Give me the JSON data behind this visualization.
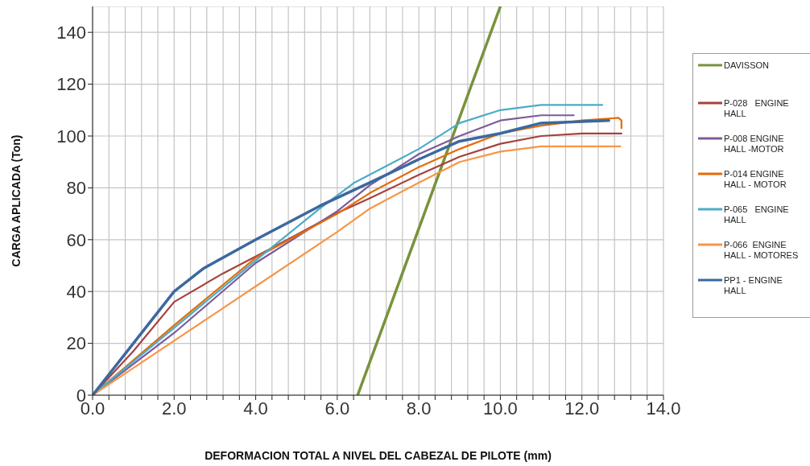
{
  "chart_data": {
    "type": "line",
    "xlabel": "DEFORMACION  TOTAL A NIVEL DEL CABEZAL DE PILOTE (mm)",
    "ylabel": "CARGA APLICADA   (Ton)",
    "xlim": [
      0,
      14
    ],
    "ylim": [
      0,
      150
    ],
    "xticks": [
      {
        "value": 0,
        "label": "0.0"
      },
      {
        "value": 0.4,
        "label": null
      },
      {
        "value": 0.8,
        "label": null
      },
      {
        "value": 1.2,
        "label": null
      },
      {
        "value": 1.6,
        "label": null
      },
      {
        "value": 2,
        "label": "2.0"
      },
      {
        "value": 2.4,
        "label": null
      },
      {
        "value": 2.8,
        "label": null
      },
      {
        "value": 3.2,
        "label": null
      },
      {
        "value": 3.6,
        "label": null
      },
      {
        "value": 4,
        "label": "4.0"
      },
      {
        "value": 4.4,
        "label": null
      },
      {
        "value": 4.8,
        "label": null
      },
      {
        "value": 5.2,
        "label": null
      },
      {
        "value": 5.6,
        "label": null
      },
      {
        "value": 6,
        "label": "6.0"
      },
      {
        "value": 6.4,
        "label": null
      },
      {
        "value": 6.8,
        "label": null
      },
      {
        "value": 7.2,
        "label": null
      },
      {
        "value": 7.6,
        "label": null
      },
      {
        "value": 8,
        "label": "8.0"
      },
      {
        "value": 8.4,
        "label": null
      },
      {
        "value": 8.8,
        "label": null
      },
      {
        "value": 9.2,
        "label": null
      },
      {
        "value": 9.6,
        "label": null
      },
      {
        "value": 10,
        "label": "10.0"
      },
      {
        "value": 10.4,
        "label": null
      },
      {
        "value": 10.8,
        "label": null
      },
      {
        "value": 11.2,
        "label": null
      },
      {
        "value": 11.6,
        "label": null
      },
      {
        "value": 12,
        "label": "12.0"
      },
      {
        "value": 12.4,
        "label": null
      },
      {
        "value": 12.8,
        "label": null
      },
      {
        "value": 13.2,
        "label": null
      },
      {
        "value": 13.6,
        "label": null
      },
      {
        "value": 14,
        "label": "14.0"
      }
    ],
    "yticks": [
      0,
      20,
      40,
      60,
      80,
      100,
      120,
      140
    ],
    "grid": true,
    "legend": "right",
    "marker": "none",
    "series": [
      {
        "name": "DAVISSON",
        "color": "#77933c",
        "x": [
          6.5,
          10
        ],
        "values": [
          0,
          150
        ]
      },
      {
        "name": "P-028   ENGINE HALL",
        "color": "#a5423f",
        "x": [
          0,
          1,
          2,
          3.2,
          4.3,
          5.96,
          6.8,
          8,
          9,
          10,
          11,
          12,
          12.97
        ],
        "values": [
          0,
          17,
          36,
          47,
          56,
          70,
          76,
          85,
          92,
          97,
          100,
          101,
          101
        ]
      },
      {
        "name": "P-008 ENGINE HALL -MOTOR",
        "color": "#7e5a9b",
        "x": [
          0,
          2,
          4,
          6,
          6.8,
          8,
          9,
          10,
          11,
          11.8
        ],
        "values": [
          0,
          24,
          51,
          71,
          81,
          93,
          100,
          106,
          108,
          108
        ]
      },
      {
        "name": "P-014 ENGINE HALL - MOTOR",
        "color": "#e46c0a",
        "x": [
          0,
          2,
          4,
          6,
          6.8,
          8,
          9,
          10,
          11,
          12,
          12.9,
          12.97,
          12.97
        ],
        "values": [
          0,
          27,
          53,
          70,
          78,
          88,
          95,
          101,
          104,
          106,
          107,
          106,
          103
        ]
      },
      {
        "name": "P-065   ENGINE HALL",
        "color": "#4bacc6",
        "x": [
          0,
          2,
          4,
          5.57,
          6.42,
          8,
          9,
          10,
          11,
          12.5
        ],
        "values": [
          0,
          26,
          52,
          72,
          82,
          95,
          105,
          110,
          112,
          112
        ]
      },
      {
        "name": "P-066  ENGINE HALL - MOTORES",
        "color": "#f79646",
        "x": [
          0,
          2,
          4,
          6,
          6.8,
          8,
          9,
          10,
          11,
          12.94
        ],
        "values": [
          0,
          21,
          42,
          63,
          72,
          82,
          90,
          94,
          96,
          96
        ]
      },
      {
        "name": "PP1 - ENGINE HALL",
        "color": "#3c689e",
        "x": [
          0,
          1,
          2,
          2.73,
          4,
          5.57,
          6.8,
          8,
          9,
          10,
          11,
          12.66
        ],
        "values": [
          0,
          20,
          40,
          49,
          60,
          73,
          82,
          91,
          98,
          101,
          105,
          106
        ]
      }
    ]
  }
}
